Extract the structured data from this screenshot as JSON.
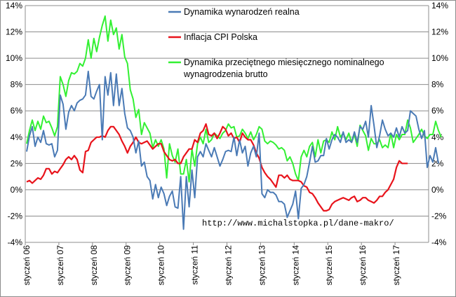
{
  "chart_data": {
    "type": "line",
    "title": "",
    "xlabel": "",
    "ylabel": "",
    "ylim": [
      -4,
      14
    ],
    "yticks": [
      "-4%",
      "-2%",
      "0%",
      "2%",
      "4%",
      "6%",
      "8%",
      "10%",
      "12%",
      "14%"
    ],
    "x_labels": [
      "styczeń 06",
      "styczeń 07",
      "styczeń 08",
      "styczeń 09",
      "styczeń 10",
      "styczeń 11",
      "styczeń 12",
      "styczeń 13",
      "styczeń 14",
      "styczeń 15",
      "styczeń 16",
      "styczeń 17"
    ],
    "x_start": "2006-01",
    "frequency": "monthly",
    "grid": true,
    "legend": "top-right",
    "annotation": "http://www.michalstopka.pl/dane-makro/",
    "series": [
      {
        "name": "Dynamika wynarodzeń realna",
        "color": "#4a7ab5",
        "values": [
          2.9,
          4.1,
          4.8,
          3.3,
          4.0,
          3.6,
          4.5,
          3.5,
          3.4,
          3.5,
          2.5,
          3.0,
          7.2,
          6.5,
          4.6,
          5.9,
          6.4,
          6.0,
          6.6,
          6.8,
          6.9,
          7.2,
          9.0,
          7.1,
          6.9,
          7.5,
          8.0,
          3.8,
          8.6,
          7.2,
          8.9,
          6.4,
          8.8,
          6.4,
          7.7,
          5.8,
          4.7,
          4.5,
          4.0,
          2.8,
          3.7,
          1.8,
          2.1,
          1.0,
          0.7,
          -0.7,
          0.4,
          -0.6,
          0.2,
          -0.3,
          -1.2,
          -0.5,
          -0.1,
          -1.3,
          -1.4,
          1.0,
          -3.0,
          1.0,
          -1.3,
          1.5,
          -0.6,
          2.5,
          2.9,
          2.5,
          3.5,
          3.0,
          2.5,
          3.2,
          2.5,
          1.8,
          2.3,
          2.9,
          3.0,
          2.9,
          4.0,
          2.6,
          3.8,
          2.8,
          3.3,
          1.8,
          2.8,
          3.3,
          2.5,
          4.3,
          -0.3,
          -0.6,
          0.0,
          -0.2,
          -0.2,
          -0.4,
          -0.9,
          -0.9,
          -1.1,
          -2.1,
          -1.6,
          -1.1,
          -0.1,
          -2.2,
          0.1,
          0.4,
          1.0,
          2.1,
          3.3,
          2.1,
          2.2,
          2.6,
          2.6,
          3.9,
          3.1,
          3.8,
          4.2,
          4.0,
          3.6,
          4.4,
          3.6,
          3.8,
          3.6,
          4.4,
          3.6,
          4.8,
          4.6,
          5.2,
          4.0,
          6.4,
          4.9,
          3.2,
          4.1,
          5.3,
          4.6,
          4.1,
          4.3,
          4.0,
          4.7,
          4.0,
          4.8,
          4.3,
          4.5,
          6.0,
          5.8,
          5.6,
          4.6,
          3.9,
          4.5,
          1.7,
          2.6,
          2.1,
          3.2,
          2.0
        ]
      },
      {
        "name": "Inflacja CPI Polska",
        "color": "#e8131b",
        "values": [
          0.6,
          0.7,
          0.5,
          0.7,
          0.9,
          0.8,
          1.1,
          1.6,
          1.6,
          1.2,
          1.4,
          1.3,
          1.6,
          1.9,
          2.3,
          2.5,
          2.3,
          2.6,
          2.3,
          1.5,
          1.3,
          2.9,
          3.0,
          3.6,
          3.8,
          4.0,
          4.0,
          4.1,
          4.0,
          4.5,
          4.8,
          4.8,
          4.5,
          4.2,
          3.7,
          3.3,
          2.8,
          3.3,
          3.6,
          4.0,
          3.6,
          3.5,
          3.6,
          3.7,
          3.4,
          3.1,
          3.3,
          3.5,
          3.5,
          2.9,
          2.6,
          2.3,
          2.2,
          2.3,
          2.0,
          2.0,
          2.5,
          2.8,
          3.1,
          3.1,
          3.8,
          3.6,
          4.3,
          4.5,
          5.0,
          4.2,
          4.1,
          4.3,
          3.9,
          4.3,
          4.8,
          4.6,
          4.1,
          4.3,
          3.9,
          4.0,
          3.6,
          4.3,
          4.0,
          3.8,
          3.8,
          3.4,
          2.8,
          2.4,
          1.7,
          1.3,
          1.0,
          0.8,
          0.5,
          0.2,
          1.1,
          1.1,
          0.9,
          1.1,
          0.8,
          0.7,
          0.7,
          0.7,
          0.6,
          0.3,
          0.2,
          -0.2,
          -0.3,
          -0.6,
          -1.0,
          -1.3,
          -1.6,
          -1.6,
          -1.5,
          -1.1,
          -0.9,
          -0.8,
          -0.7,
          -0.6,
          -0.7,
          -0.8,
          -0.6,
          -0.5,
          -0.9,
          -0.8,
          -0.6,
          -0.6,
          -0.8,
          -0.9,
          -1.0,
          -0.8,
          -0.5,
          -0.5,
          -0.2,
          0.0,
          0.4,
          0.8,
          1.7,
          2.2,
          2.0,
          2.0,
          2.0
        ]
      },
      {
        "name": "Dynamika przeciętnego miesięcznego nominalnego wynagrodzenia brutto",
        "color": "#33f033",
        "values": [
          3.5,
          4.5,
          5.3,
          4.5,
          5.2,
          4.6,
          5.6,
          5.1,
          5.2,
          4.7,
          4.1,
          4.8,
          8.6,
          8.0,
          7.1,
          8.3,
          8.9,
          8.8,
          9.0,
          9.6,
          9.4,
          10.0,
          11.4,
          10.0,
          11.5,
          10.5,
          11.6,
          12.5,
          13.2,
          11.3,
          12.9,
          11.8,
          12.3,
          10.7,
          11.8,
          10.1,
          9.6,
          7.6,
          6.9,
          5.5,
          6.1,
          4.2,
          5.1,
          4.7,
          4.3,
          3.2,
          3.8,
          3.3,
          3.8,
          3.1,
          0.9,
          3.5,
          2.6,
          2.1,
          3.1,
          1.2,
          1.2,
          2.3,
          0.6,
          3.1,
          1.8,
          3.5,
          4.0,
          3.5,
          4.6,
          3.6,
          3.8,
          4.3,
          4.1,
          3.9,
          4.3,
          4.5,
          5.0,
          4.7,
          4.8,
          4.0,
          4.1,
          4.6,
          4.3,
          3.9,
          4.4,
          3.8,
          4.2,
          4.8,
          4.6,
          3.7,
          3.5,
          3.7,
          3.6,
          3.4,
          3.1,
          3.2,
          3.0,
          2.2,
          2.5,
          2.0,
          1.2,
          0.7,
          2.5,
          3.0,
          2.5,
          3.3,
          3.6,
          2.5,
          3.8,
          2.8,
          3.7,
          3.8,
          3.6,
          4.4,
          3.8,
          4.8,
          4.0,
          4.3,
          3.8,
          4.3,
          3.6,
          4.2,
          3.3,
          4.9,
          4.5,
          4.1,
          3.0,
          3.9,
          3.5,
          3.5,
          3.8,
          3.2,
          3.4,
          3.2,
          4.3,
          3.2,
          4.2,
          3.8,
          4.2,
          4.2,
          5.3,
          4.7,
          3.6,
          3.9,
          4.2,
          4.6,
          4.1,
          3.9,
          4.2,
          4.2,
          5.2,
          4.5,
          4.0
        ]
      }
    ]
  }
}
